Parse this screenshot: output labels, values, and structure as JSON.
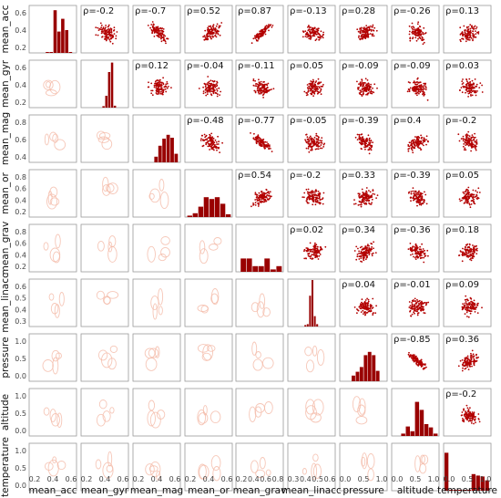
{
  "chart_data": {
    "type": "scatter-matrix",
    "colors": {
      "point": "#b30000",
      "bar": "#990000",
      "kde": "#f4b9a6",
      "frame": "#9a9a9a"
    },
    "variables": [
      "mean_acc",
      "mean_gyr",
      "mean_mag",
      "mean_or",
      "mean_grav",
      "mean_linacc",
      "pressure",
      "altitude",
      "temperature"
    ],
    "x_ticks": [
      [
        "0.2",
        "0.4",
        "0.6"
      ],
      [
        "0.2",
        "0.4",
        "0.6"
      ],
      [
        "0.2",
        "0.4",
        "0.6"
      ],
      [
        "0.2",
        "0.4",
        "0.6"
      ],
      [
        "0.2",
        "0.4",
        "0.6",
        "0.8"
      ],
      [
        "0.3",
        "0.4",
        "0.5",
        "0.6"
      ],
      [
        "0.0",
        "0.5",
        "1.0"
      ],
      [
        "0.0",
        "0.5",
        "1.0"
      ],
      [
        "0.0",
        "0.5",
        "1.0"
      ]
    ],
    "y_ticks": [
      [
        "0.6",
        "0.4",
        "0.2"
      ],
      [
        "0.6",
        "0.4",
        "0.2"
      ],
      [
        "0.8",
        "0.6",
        "0.4"
      ],
      [
        "0.8",
        "0.6",
        "0.4",
        "0.2"
      ],
      [
        "0.8",
        "0.6",
        "0.4",
        "0.2"
      ],
      [
        "0.6",
        "0.5",
        "0.4",
        "0.3"
      ],
      [
        "1.0",
        "0.5",
        "0.0"
      ],
      [
        "1.0",
        "0.5",
        "0.0"
      ],
      [
        "1.0",
        "0.5",
        "0.0"
      ]
    ],
    "correlations": [
      [
        "",
        "ρ=-0.2",
        "ρ=-0.7",
        "ρ=0.52",
        "ρ=0.87",
        "ρ=-0.13",
        "ρ=0.28",
        "ρ=-0.26",
        "ρ=0.13"
      ],
      [
        "",
        "",
        "ρ=0.12",
        "ρ=-0.04",
        "ρ=-0.11",
        "ρ=0.05",
        "ρ=-0.09",
        "ρ=-0.09",
        "ρ=0.03"
      ],
      [
        "",
        "",
        "",
        "ρ=-0.48",
        "ρ=-0.77",
        "ρ=-0.05",
        "ρ=-0.39",
        "ρ=0.4",
        "ρ=-0.2"
      ],
      [
        "",
        "",
        "",
        "",
        "ρ=0.54",
        "ρ=-0.2",
        "ρ=0.33",
        "ρ=-0.39",
        "ρ=0.05"
      ],
      [
        "",
        "",
        "",
        "",
        "",
        "ρ=0.02",
        "ρ=0.34",
        "ρ=-0.36",
        "ρ=0.18"
      ],
      [
        "",
        "",
        "",
        "",
        "",
        "",
        "ρ=0.04",
        "ρ=-0.01",
        "ρ=0.09"
      ],
      [
        "",
        "",
        "",
        "",
        "",
        "",
        "",
        "ρ=-0.85",
        "ρ=0.36"
      ],
      [
        "",
        "",
        "",
        "",
        "",
        "",
        "",
        "",
        "ρ=-0.2"
      ],
      [
        "",
        "",
        "",
        "",
        "",
        "",
        "",
        "",
        ""
      ]
    ],
    "histograms": [
      [
        0.02,
        0.02,
        0.9,
        0.45,
        0.72,
        0.48,
        0.02
      ],
      [
        0.03,
        0.25,
        0.75,
        0.95,
        0.04
      ],
      [
        0.12,
        0.35,
        0.5,
        0.58,
        0.52,
        0.18
      ],
      [
        0.03,
        0.08,
        0.22,
        0.42,
        0.38,
        0.42,
        0.28,
        0.06
      ],
      [
        0.28,
        0.28,
        0.12,
        0.12,
        0.28,
        0.05,
        0.12
      ],
      [
        0.03,
        0.05,
        0.65,
        0.98,
        0.22,
        0.05
      ],
      [
        0.12,
        0.2,
        0.3,
        0.55,
        0.62,
        0.55,
        0.22
      ],
      [
        0.05,
        0.2,
        0.1,
        0.72,
        0.55,
        0.25,
        0.18,
        0.05
      ],
      [
        0.8,
        0.02,
        0.02,
        0.02,
        0.02,
        0.02,
        0.35,
        0.32,
        0.3,
        0.22
      ]
    ],
    "hist_ranges": [
      [
        0.35,
        0.92
      ],
      [
        0.45,
        0.75
      ],
      [
        0.45,
        0.96
      ],
      [
        0.05,
        0.98
      ],
      [
        0.1,
        0.98
      ],
      [
        0.35,
        0.65
      ],
      [
        0.25,
        0.85
      ],
      [
        0.2,
        0.98
      ],
      [
        0.02,
        0.97
      ]
    ]
  }
}
